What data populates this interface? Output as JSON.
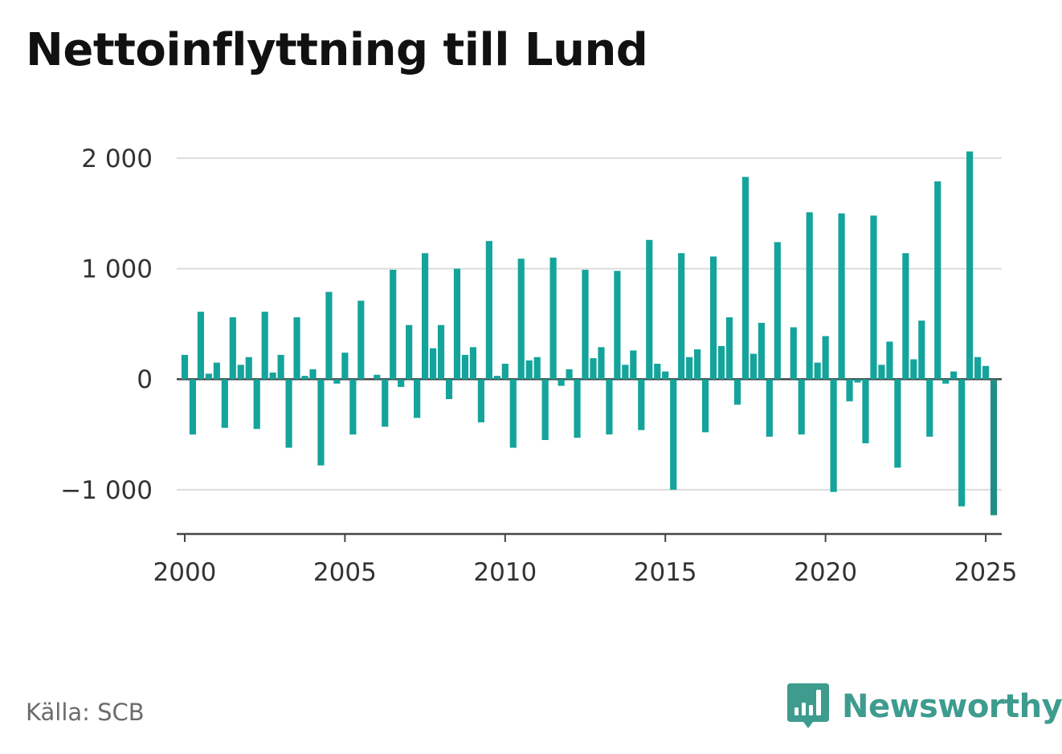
{
  "title": "Nettoinflyttning till Lund",
  "source": "Källa: SCB",
  "brand": {
    "name": "Newsworthy",
    "color": "#3e9c8f",
    "icon": "bar-chart-speech-bubble-icon"
  },
  "colors": {
    "bar": "#14a49b",
    "bar_highlight": "#1f8f86",
    "grid": "#dcdcdc",
    "axis": "#444444",
    "zero_line": "#444444"
  },
  "chart_data": {
    "type": "bar",
    "title": "Nettoinflyttning till Lund",
    "xlabel": "",
    "ylabel": "",
    "frequency": "quarterly",
    "x_start": 2000.0,
    "ylim": [
      -1400,
      2050
    ],
    "xlim": [
      1999.75,
      2025.5
    ],
    "y_ticks": [
      -1000,
      0,
      1000,
      2000
    ],
    "y_tick_labels": [
      "−1 000",
      "0",
      "1 000",
      "2 000"
    ],
    "x_ticks": [
      2000,
      2005,
      2010,
      2015,
      2020,
      2025
    ],
    "x_tick_labels": [
      "2000",
      "2005",
      "2010",
      "2015",
      "2020",
      "2025"
    ],
    "grid": true,
    "values": [
      220,
      -500,
      610,
      50,
      150,
      -440,
      560,
      130,
      200,
      -450,
      610,
      60,
      220,
      -620,
      560,
      30,
      90,
      -780,
      790,
      -40,
      240,
      -500,
      710,
      0,
      40,
      -430,
      990,
      -70,
      490,
      -350,
      1140,
      280,
      490,
      -180,
      1000,
      220,
      290,
      -390,
      1250,
      30,
      140,
      -620,
      1090,
      170,
      200,
      -550,
      1100,
      -60,
      90,
      -530,
      990,
      190,
      290,
      -500,
      980,
      130,
      260,
      -460,
      1260,
      140,
      70,
      -1000,
      1140,
      200,
      270,
      -480,
      1110,
      300,
      560,
      -230,
      1830,
      230,
      510,
      -520,
      1240,
      0,
      470,
      -500,
      1510,
      150,
      390,
      -1020,
      1500,
      -200,
      -30,
      -580,
      1480,
      130,
      340,
      -800,
      1140,
      180,
      530,
      -520,
      1790,
      -40,
      70,
      -1150,
      2060,
      200,
      120,
      -1230
    ]
  }
}
